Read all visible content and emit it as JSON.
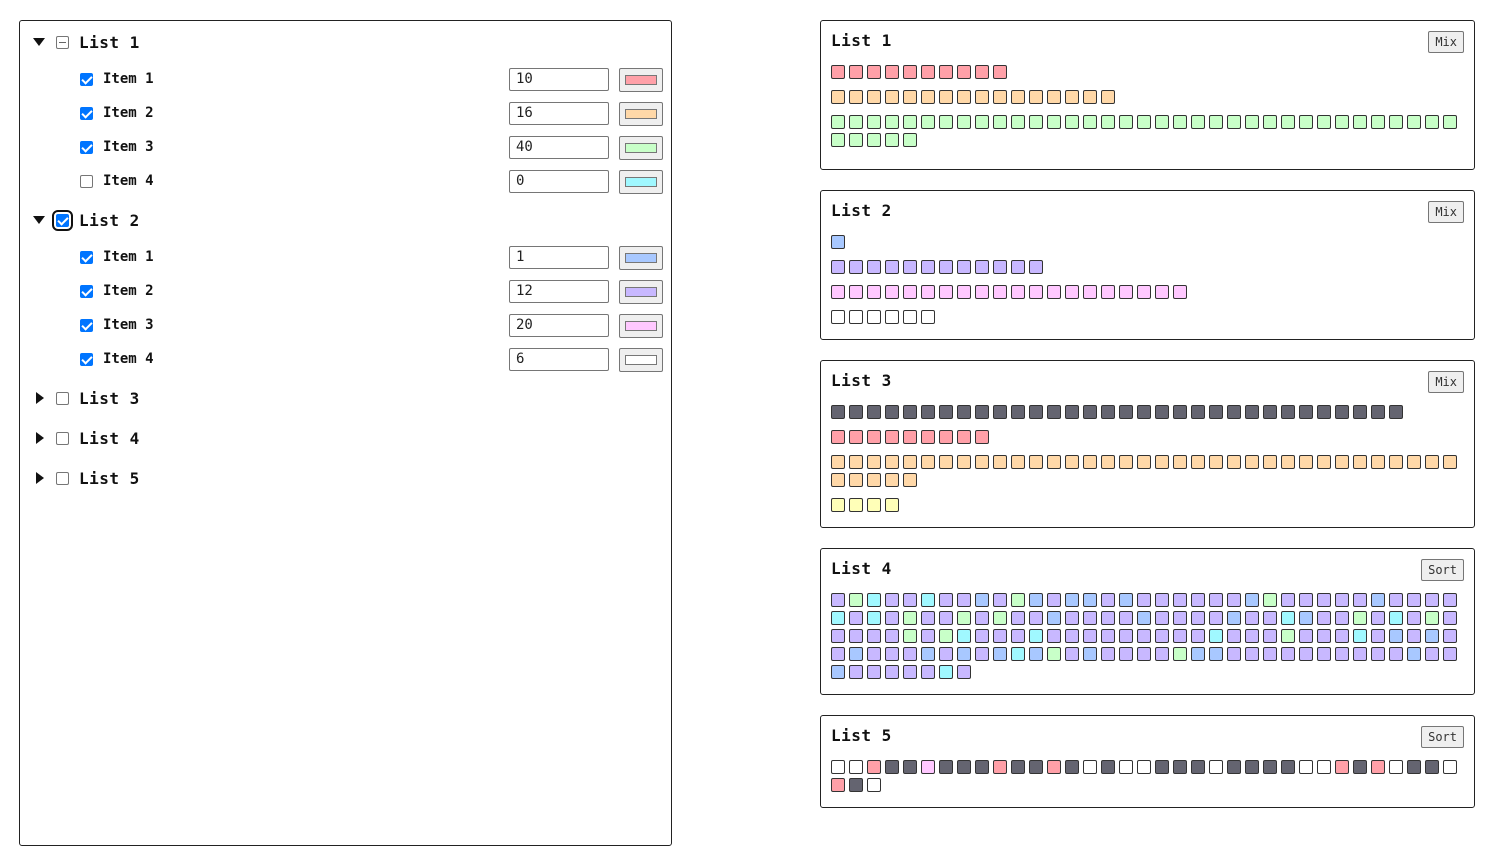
{
  "colors": {
    "red": "#ffa0a8",
    "orange": "#ffd8a8",
    "green": "#c8ffc8",
    "cyan": "#a0f8ff",
    "blue": "#a8c8ff",
    "purple": "#c8b8ff",
    "pink": "#ffc8ff",
    "white": "#ffffff",
    "dark": "#646470",
    "yellow": "#ffffb8"
  },
  "lists": [
    {
      "label": "List 1",
      "expanded": true,
      "state": "mixed",
      "focused": false,
      "items": [
        {
          "label": "Item 1",
          "checked": true,
          "value": "10",
          "color": "#ffa0a8"
        },
        {
          "label": "Item 2",
          "checked": true,
          "value": "16",
          "color": "#ffd8a8"
        },
        {
          "label": "Item 3",
          "checked": true,
          "value": "40",
          "color": "#c8ffc8"
        },
        {
          "label": "Item 4",
          "checked": false,
          "value": "0",
          "color": "#a0f8ff"
        }
      ]
    },
    {
      "label": "List 2",
      "expanded": true,
      "state": "checked",
      "focused": true,
      "items": [
        {
          "label": "Item 1",
          "checked": true,
          "value": "1",
          "color": "#a8c8ff"
        },
        {
          "label": "Item 2",
          "checked": true,
          "value": "12",
          "color": "#c8b8ff"
        },
        {
          "label": "Item 3",
          "checked": true,
          "value": "20",
          "color": "#ffc8ff"
        },
        {
          "label": "Item 4",
          "checked": true,
          "value": "6",
          "color": "#ffffff"
        }
      ]
    },
    {
      "label": "List 3",
      "expanded": false,
      "state": "unchecked",
      "focused": false,
      "items": []
    },
    {
      "label": "List 4",
      "expanded": false,
      "state": "unchecked",
      "focused": false,
      "items": []
    },
    {
      "label": "List 5",
      "expanded": false,
      "state": "unchecked",
      "focused": false,
      "items": []
    }
  ],
  "cards": [
    {
      "title": "List 1",
      "button": "Mix",
      "rows": [
        [
          "red",
          10
        ],
        [
          "orange",
          16
        ],
        [
          "green",
          40
        ]
      ]
    },
    {
      "title": "List 2",
      "button": "Mix",
      "rows": [
        [
          "blue",
          1
        ],
        [
          "purple",
          12
        ],
        [
          "pink",
          20
        ],
        [
          "white",
          6
        ]
      ]
    },
    {
      "title": "List 3",
      "button": "Mix",
      "rows": [
        [
          "dark",
          32
        ],
        [
          "red",
          9
        ],
        [
          "orange",
          40
        ],
        [
          "yellow",
          4
        ]
      ]
    },
    {
      "title": "List 4",
      "button": "Sort",
      "cells": "PGCPPCPPBPGBPBBPBPPPPPPBGPPPPPBPPPPCPCPGPPGPGPPBPPPPBPPPPBPPCBPPGPCPGPPPPPGPGCPPPCPPPPPPPPPCPPPGPPPCPBPBPPBPPPBPBPBCBGPBPPPPGBBPPPPPPPPPPBPPBPPPPPCP"
    },
    {
      "title": "List 5",
      "button": "Sort",
      "cells": "WWRDDKDDDRDDRDWDWWDDDWDDDDWWRDRWDDWRDW"
    }
  ]
}
